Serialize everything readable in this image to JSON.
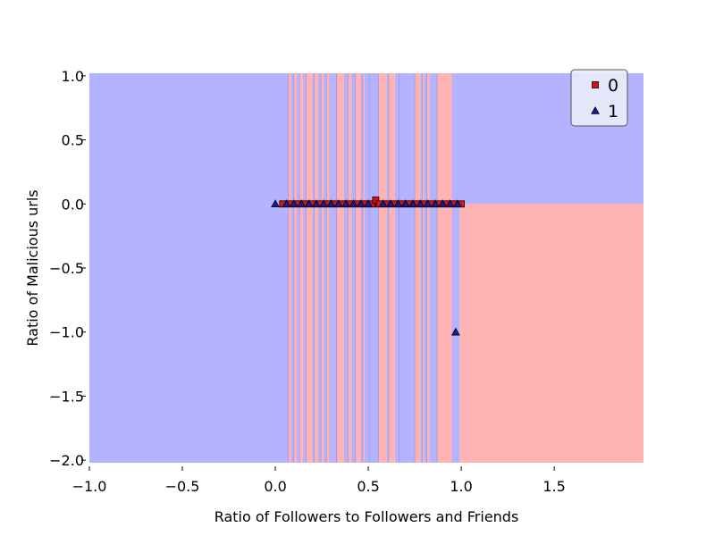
{
  "chart_data": {
    "type": "scatter",
    "xlabel": "Ratio of Followers to Followers and Friends",
    "ylabel": "Ratio of Malicious urls",
    "xlim": [
      -1.0,
      1.98
    ],
    "ylim": [
      -2.02,
      1.02
    ],
    "xticks": [
      -1.0,
      -0.5,
      0.0,
      0.5,
      1.0,
      1.5
    ],
    "yticks": [
      1.0,
      0.5,
      0.0,
      -0.5,
      -1.0,
      -1.5,
      -2.0
    ],
    "xtick_labels": [
      "−1.0",
      "−0.5",
      "0.0",
      "0.5",
      "1.0",
      "1.5"
    ],
    "ytick_labels": [
      "1.0",
      "0.5",
      "0.0",
      "−0.5",
      "−1.0",
      "−1.5",
      "−2.0"
    ],
    "grid": false,
    "legend_position": "top-right",
    "class_colors": {
      "0": "#ffb3b3",
      "1": "#b3b3ff"
    },
    "marker_colors": {
      "0": "#dd1111",
      "1": "#1a1a9e"
    },
    "regions": {
      "background": "1",
      "bottom_right": {
        "x_from": 0.99,
        "y_to": 0.0,
        "class": "0"
      },
      "stripes": [
        {
          "x0": 0.07,
          "x1": 0.085,
          "class": "0"
        },
        {
          "x0": 0.1,
          "x1": 0.115,
          "class": "0"
        },
        {
          "x0": 0.13,
          "x1": 0.15,
          "class": "0"
        },
        {
          "x0": 0.165,
          "x1": 0.2,
          "class": "0"
        },
        {
          "x0": 0.21,
          "x1": 0.23,
          "class": "0"
        },
        {
          "x0": 0.245,
          "x1": 0.26,
          "class": "0"
        },
        {
          "x0": 0.275,
          "x1": 0.29,
          "class": "0"
        },
        {
          "x0": 0.33,
          "x1": 0.37,
          "class": "0"
        },
        {
          "x0": 0.39,
          "x1": 0.41,
          "class": "0"
        },
        {
          "x0": 0.43,
          "x1": 0.46,
          "class": "0"
        },
        {
          "x0": 0.47,
          "x1": 0.48,
          "class": "0"
        },
        {
          "x0": 0.505,
          "x1": 0.54,
          "class": "1"
        },
        {
          "x0": 0.555,
          "x1": 0.6,
          "class": "0"
        },
        {
          "x0": 0.61,
          "x1": 0.645,
          "class": "0"
        },
        {
          "x0": 0.665,
          "x1": 0.72,
          "class": "1"
        },
        {
          "x0": 0.75,
          "x1": 0.78,
          "class": "0"
        },
        {
          "x0": 0.79,
          "x1": 0.8,
          "class": "0"
        },
        {
          "x0": 0.815,
          "x1": 0.83,
          "class": "0"
        },
        {
          "x0": 0.87,
          "x1": 0.95,
          "class": "0"
        }
      ]
    },
    "series": [
      {
        "name": "0",
        "marker": "square",
        "points": [
          [
            0.04,
            0.0
          ],
          [
            0.08,
            0.0
          ],
          [
            0.12,
            0.0
          ],
          [
            0.16,
            0.0
          ],
          [
            0.2,
            0.0
          ],
          [
            0.24,
            0.0
          ],
          [
            0.28,
            0.0
          ],
          [
            0.32,
            0.0
          ],
          [
            0.36,
            0.0
          ],
          [
            0.4,
            0.0
          ],
          [
            0.44,
            0.0
          ],
          [
            0.48,
            0.0
          ],
          [
            0.52,
            0.0
          ],
          [
            0.54,
            0.03
          ],
          [
            0.56,
            0.0
          ],
          [
            0.6,
            0.0
          ],
          [
            0.64,
            0.0
          ],
          [
            0.68,
            0.0
          ],
          [
            0.72,
            0.0
          ],
          [
            0.76,
            0.0
          ],
          [
            0.8,
            0.0
          ],
          [
            0.84,
            0.0
          ],
          [
            0.88,
            0.0
          ],
          [
            0.92,
            0.0
          ],
          [
            0.96,
            0.0
          ],
          [
            1.0,
            0.0
          ]
        ]
      },
      {
        "name": "1",
        "marker": "triangle",
        "points": [
          [
            0.0,
            0.0
          ],
          [
            0.06,
            0.0
          ],
          [
            0.1,
            0.0
          ],
          [
            0.14,
            0.0
          ],
          [
            0.18,
            0.0
          ],
          [
            0.22,
            0.0
          ],
          [
            0.26,
            0.0
          ],
          [
            0.3,
            0.0
          ],
          [
            0.34,
            0.0
          ],
          [
            0.38,
            0.0
          ],
          [
            0.42,
            0.0
          ],
          [
            0.46,
            0.0
          ],
          [
            0.5,
            0.0
          ],
          [
            0.58,
            0.0
          ],
          [
            0.62,
            0.0
          ],
          [
            0.66,
            0.0
          ],
          [
            0.7,
            0.0
          ],
          [
            0.74,
            0.0
          ],
          [
            0.78,
            0.0
          ],
          [
            0.82,
            0.0
          ],
          [
            0.86,
            0.0
          ],
          [
            0.9,
            0.0
          ],
          [
            0.94,
            0.0
          ],
          [
            0.98,
            0.0
          ],
          [
            0.97,
            -1.0
          ]
        ]
      }
    ]
  }
}
